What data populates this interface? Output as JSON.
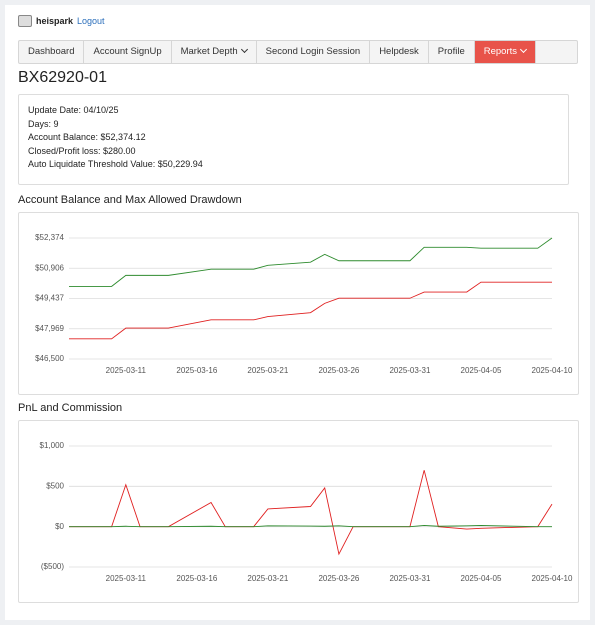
{
  "header": {
    "user": "heispark",
    "logout": "Logout"
  },
  "nav": [
    "Dashboard",
    "Account SignUp",
    "Market Depth",
    "Second Login Session",
    "Helpdesk",
    "Profile",
    "Reports"
  ],
  "account": {
    "title": "BX62920-01",
    "info": [
      "Update Date: 04/10/25",
      "Days: 9",
      "Account Balance: $52,374.12",
      "Closed/Profit loss: $280.00",
      "Auto Liquidate Threshold Value: $50,229.94"
    ]
  },
  "chart_data": [
    {
      "type": "line",
      "title": "Account Balance and Max Allowed Drawdown",
      "x": [
        "2025-03-07",
        "2025-03-10",
        "2025-03-11",
        "2025-03-14",
        "2025-03-17",
        "2025-03-20",
        "2025-03-21",
        "2025-03-24",
        "2025-03-25",
        "2025-03-26",
        "2025-03-31",
        "2025-04-01",
        "2025-04-04",
        "2025-04-05",
        "2025-04-09",
        "2025-04-10"
      ],
      "series": [
        {
          "color": "#2e8b2e",
          "values": [
            50024,
            50024,
            50560,
            50560,
            50860,
            50860,
            51050,
            51200,
            51580,
            51270,
            51270,
            51920,
            51920,
            51880,
            51880,
            52374
          ]
        },
        {
          "color": "#e02020",
          "values": [
            47480,
            47480,
            48000,
            48000,
            48400,
            48400,
            48560,
            48750,
            49200,
            49450,
            49450,
            49750,
            49750,
            50230,
            50230,
            50230
          ]
        }
      ],
      "xlim": [
        "2025-03-07",
        "2025-04-10"
      ],
      "xticks": [
        "2025-03-11",
        "2025-03-16",
        "2025-03-21",
        "2025-03-26",
        "2025-03-31",
        "2025-04-05",
        "2025-04-10"
      ],
      "ylim": [
        46500,
        52374
      ],
      "yticks": [
        {
          "value": 46500,
          "label": "$46,500"
        },
        {
          "value": 47969,
          "label": "$47,969"
        },
        {
          "value": 49437,
          "label": "$49,437"
        },
        {
          "value": 50906,
          "label": "$50,906"
        },
        {
          "value": 52374,
          "label": "$52,374"
        }
      ],
      "grid": true
    },
    {
      "type": "line",
      "title": "PnL and Commission",
      "x": [
        "2025-03-07",
        "2025-03-10",
        "2025-03-11",
        "2025-03-12",
        "2025-03-14",
        "2025-03-17",
        "2025-03-18",
        "2025-03-20",
        "2025-03-21",
        "2025-03-24",
        "2025-03-25",
        "2025-03-26",
        "2025-03-27",
        "2025-03-31",
        "2025-04-01",
        "2025-04-02",
        "2025-04-04",
        "2025-04-05",
        "2025-04-09",
        "2025-04-10"
      ],
      "series": [
        {
          "color": "#e02020",
          "values": [
            0,
            0,
            520,
            0,
            0,
            300,
            0,
            0,
            220,
            250,
            480,
            -340,
            0,
            0,
            700,
            0,
            -30,
            -20,
            0,
            280
          ]
        },
        {
          "color": "#2e8b2e",
          "values": [
            0,
            0,
            5,
            0,
            0,
            5,
            0,
            0,
            10,
            8,
            5,
            10,
            0,
            0,
            15,
            5,
            10,
            15,
            0,
            0
          ]
        }
      ],
      "xlim": [
        "2025-03-07",
        "2025-04-10"
      ],
      "xticks": [
        "2025-03-11",
        "2025-03-16",
        "2025-03-21",
        "2025-03-26",
        "2025-03-31",
        "2025-04-05",
        "2025-04-10"
      ],
      "ylim": [
        -500,
        1000
      ],
      "yticks": [
        {
          "value": -500,
          "label": "($500)"
        },
        {
          "value": 0,
          "label": "$0"
        },
        {
          "value": 500,
          "label": "$500"
        },
        {
          "value": 1000,
          "label": "$1,000"
        }
      ],
      "grid": true
    }
  ]
}
